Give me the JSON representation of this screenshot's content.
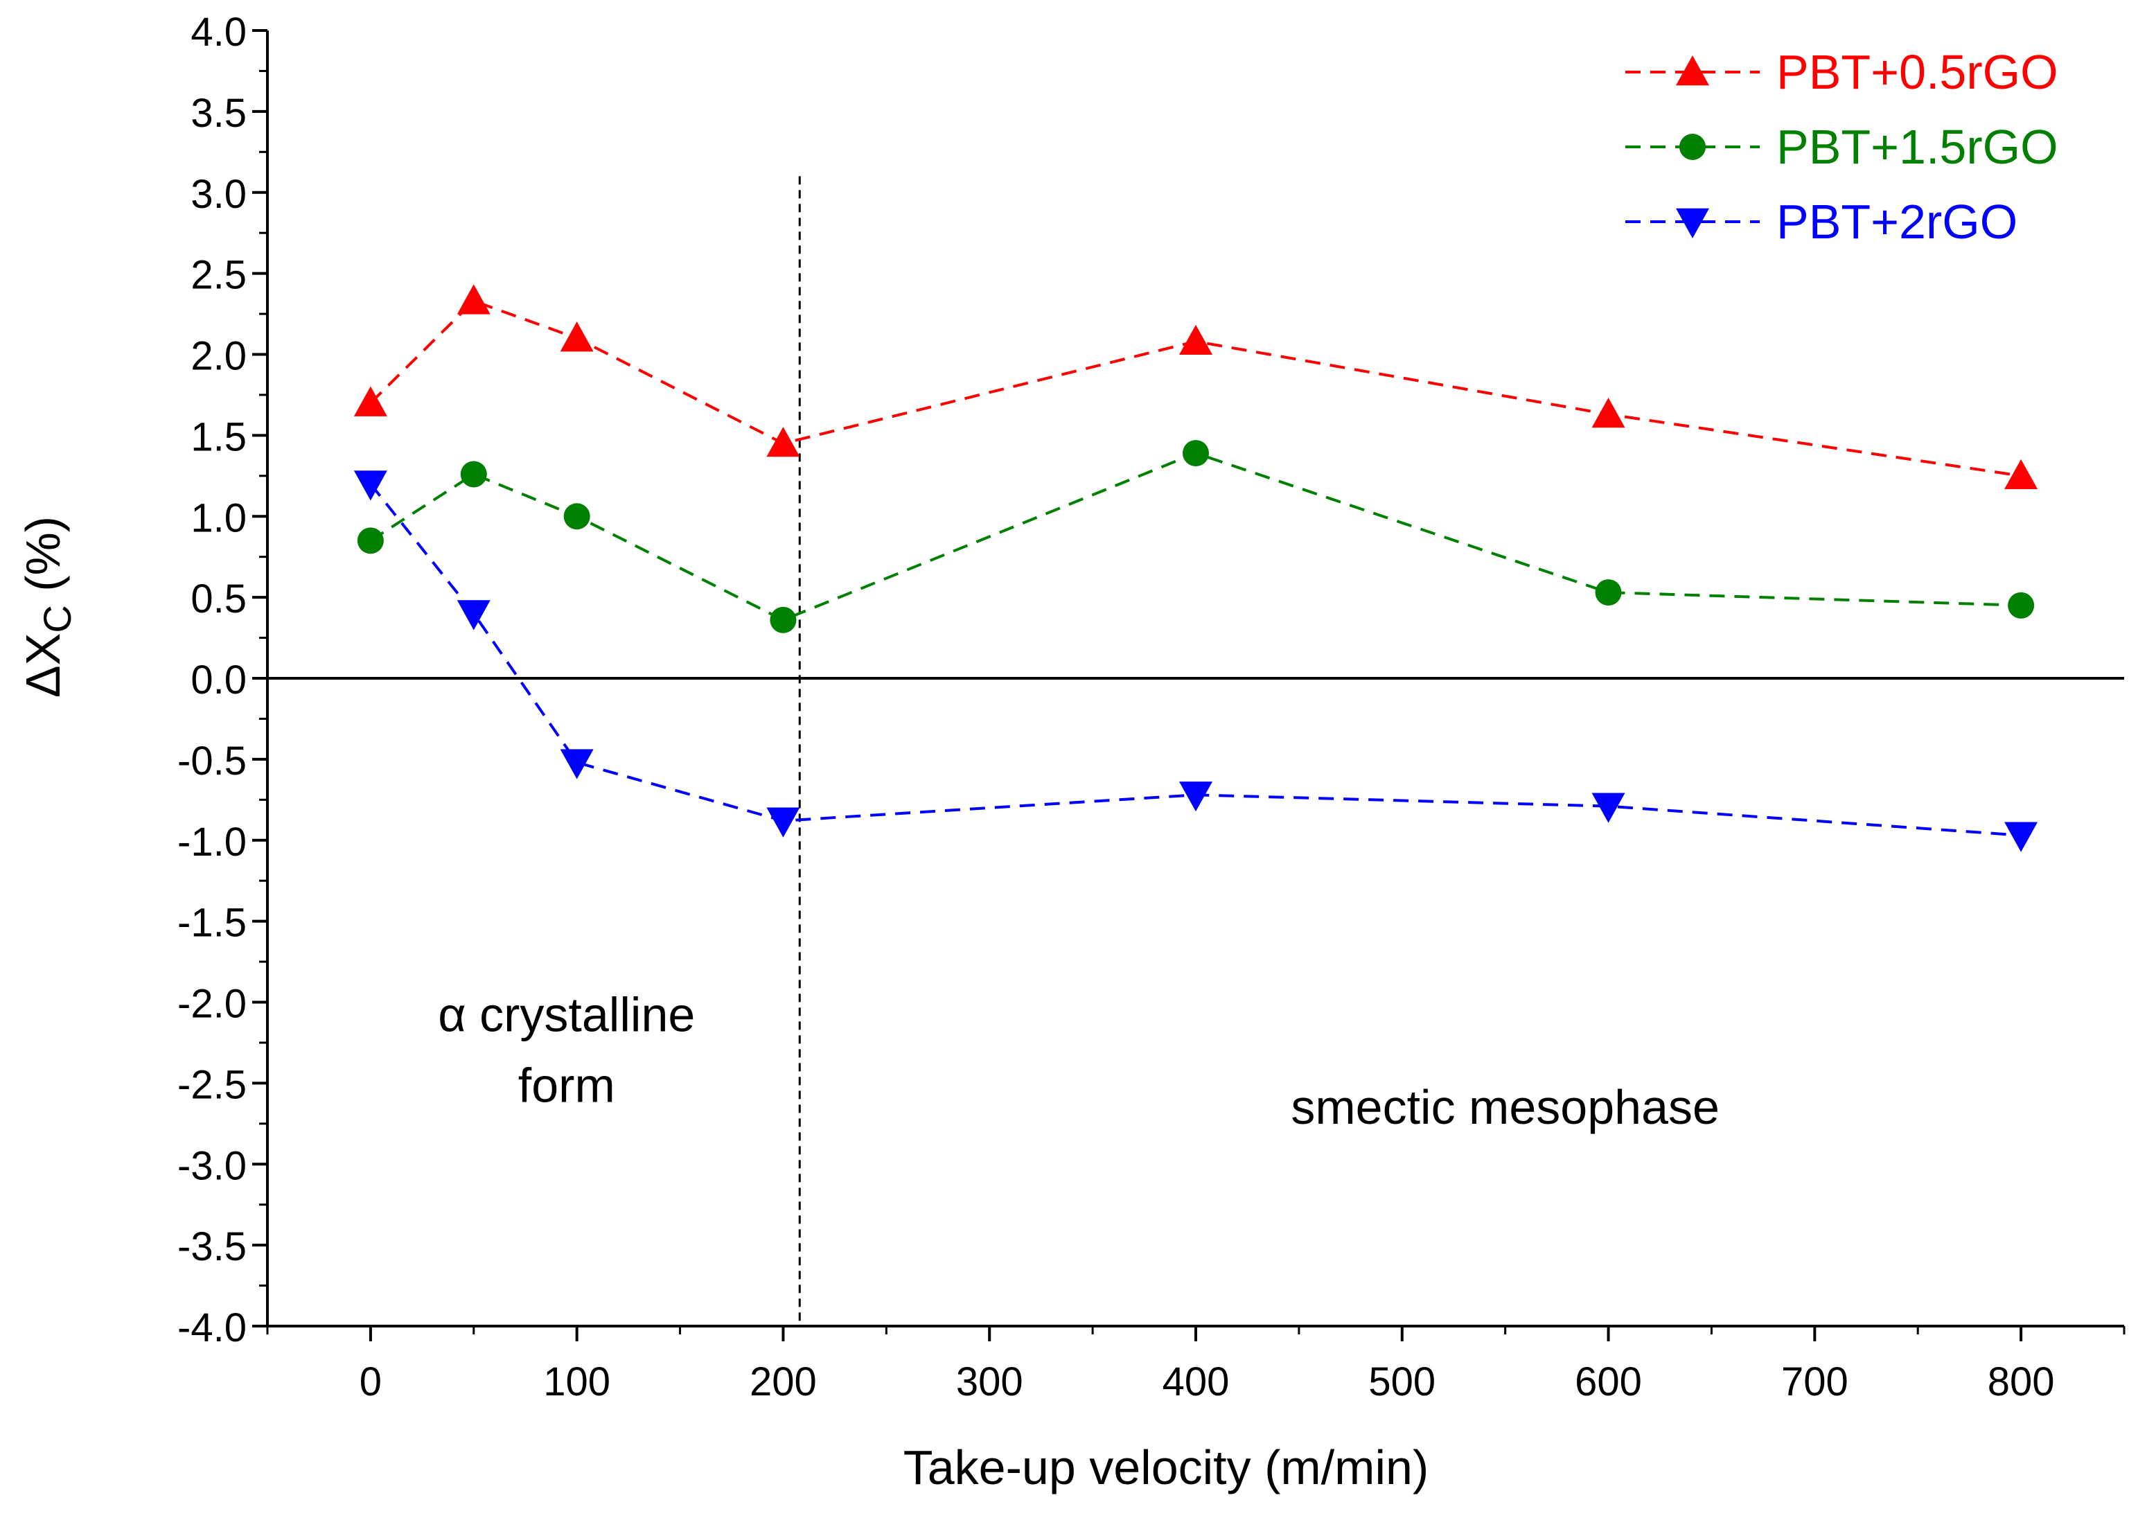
{
  "chart_data": {
    "type": "line",
    "title": "",
    "xlabel": "Take-up velocity (m/min)",
    "ylabel": {
      "prefix": "ΔX",
      "subscript": "C",
      "suffix": " (%)"
    },
    "xlim": [
      -50,
      850
    ],
    "ylim": [
      -4.0,
      4.0
    ],
    "x_ticks": [
      0,
      100,
      200,
      300,
      400,
      500,
      600,
      700,
      800
    ],
    "x_tick_labels": [
      "0",
      "100",
      "200",
      "300",
      "400",
      "500",
      "600",
      "700",
      "800"
    ],
    "y_ticks": [
      -4.0,
      -3.5,
      -3.0,
      -2.5,
      -2.0,
      -1.5,
      -1.0,
      -0.5,
      0.0,
      0.5,
      1.0,
      1.5,
      2.0,
      2.5,
      3.0,
      3.5,
      4.0
    ],
    "y_tick_labels": [
      "-4.0",
      "-3.5",
      "-3.0",
      "-2.5",
      "-2.0",
      "-1.5",
      "-1.0",
      "-0.5",
      "0.0",
      "0.5",
      "1.0",
      "1.5",
      "2.0",
      "2.5",
      "3.0",
      "3.5",
      "4.0"
    ],
    "grid": false,
    "legend_position": "top-right",
    "zero_line": 0.0,
    "divider_x": 208,
    "divider_top": 3.1,
    "annotations": [
      {
        "id": "alpha-label",
        "lines": [
          "α crystalline",
          "form"
        ],
        "x": 95,
        "y": -2.18
      },
      {
        "id": "smectic-label",
        "lines": [
          "smectic mesophase"
        ],
        "x": 550,
        "y": -2.75
      }
    ],
    "series": [
      {
        "name": "PBT+0.5rGO",
        "color": "#ff0000",
        "marker": "triangle-up",
        "x": [
          0,
          50,
          100,
          200,
          400,
          600,
          800
        ],
        "values": [
          1.7,
          2.33,
          2.1,
          1.45,
          2.08,
          1.63,
          1.25
        ]
      },
      {
        "name": "PBT+1.5rGO",
        "color": "#008000",
        "marker": "circle",
        "x": [
          0,
          50,
          100,
          200,
          400,
          600,
          800
        ],
        "values": [
          0.85,
          1.26,
          1.0,
          0.36,
          1.39,
          0.53,
          0.45
        ]
      },
      {
        "name": "PBT+2rGO",
        "color": "#0000ff",
        "marker": "triangle-down",
        "x": [
          0,
          50,
          100,
          200,
          400,
          600,
          800
        ],
        "values": [
          1.2,
          0.4,
          -0.52,
          -0.88,
          -0.72,
          -0.79,
          -0.97
        ]
      }
    ]
  }
}
